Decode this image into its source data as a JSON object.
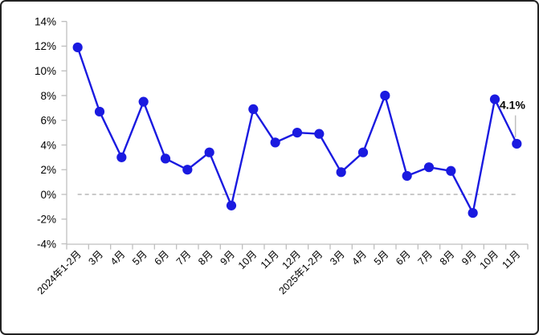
{
  "chart_data": {
    "type": "line",
    "title": "",
    "categories": [
      "2024年1-2月",
      "3月",
      "4月",
      "5月",
      "6月",
      "7月",
      "8月",
      "9月",
      "10月",
      "11月",
      "12月",
      "2025年1-2月",
      "3月",
      "4月",
      "5月",
      "6月",
      "7月",
      "8月",
      "9月",
      "10月",
      "11月"
    ],
    "values": [
      11.9,
      6.7,
      3.0,
      7.5,
      2.9,
      2.0,
      3.4,
      -0.9,
      6.9,
      4.2,
      5.0,
      4.9,
      1.8,
      3.4,
      8.0,
      1.5,
      2.2,
      1.9,
      -1.5,
      7.7,
      4.1
    ],
    "unit": "%",
    "xlabel": "",
    "ylabel": "",
    "ylim": [
      -4,
      14
    ],
    "ytick_step": 2,
    "ytick_labels": [
      "14%",
      "12%",
      "10%",
      "8%",
      "6%",
      "4%",
      "2%",
      "0%",
      "-2%",
      "-4%"
    ],
    "legend": "none",
    "grid": "off",
    "x_label_rotation_deg": 45,
    "zero_line": {
      "style": "dashed",
      "color": "#a9a9a9"
    },
    "annotation": {
      "text": "4.1%",
      "target_index": 20,
      "near_index": 19
    },
    "colors": {
      "series": "#1a1ae0",
      "marker": "#1a1ae0",
      "axis": "#bfbfbf",
      "tick": "#bfbfbf",
      "label": "#000000",
      "annotation_text": "#000000",
      "leader_line": "#bfbfbf",
      "background": "#ffffff",
      "border": "#232323"
    }
  }
}
